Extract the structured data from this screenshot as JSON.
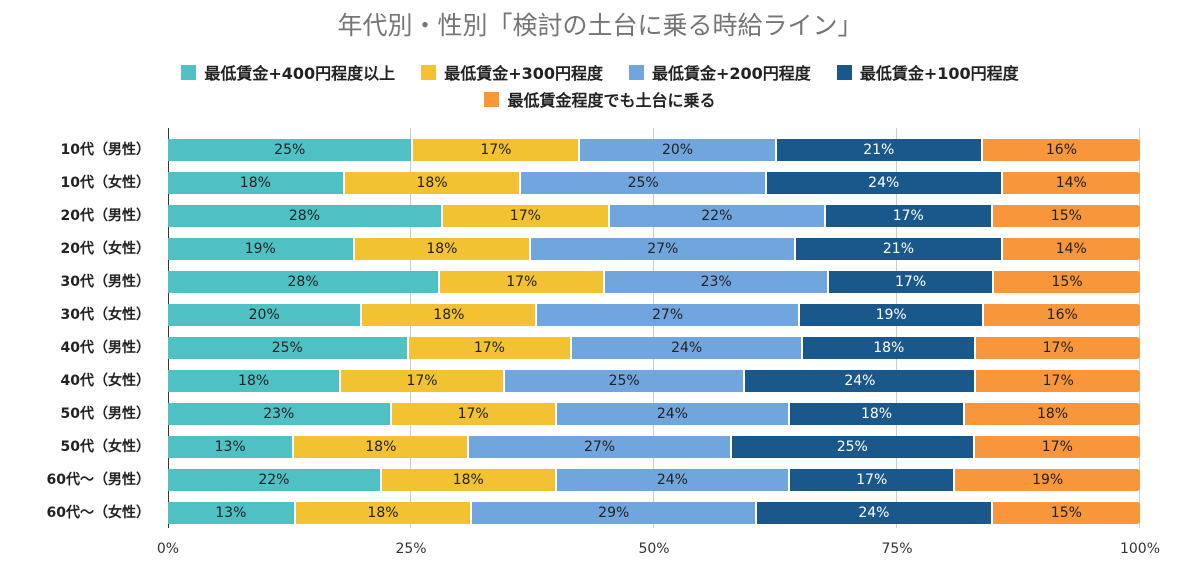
{
  "chart_data": {
    "type": "bar",
    "orientation": "horizontal",
    "stacked": "percent",
    "title": "年代別・性別「検討の土台に乗る時給ライン」",
    "categories": [
      "10代（男性）",
      "10代（女性）",
      "20代（男性）",
      "20代（女性）",
      "30代（男性）",
      "30代（女性）",
      "40代（男性）",
      "40代（女性）",
      "50代（男性）",
      "50代（女性）",
      "60代〜（男性）",
      "60代〜（女性）"
    ],
    "series": [
      {
        "name": "最低賃金+400円程度以上",
        "color": "#4fc1c5",
        "values": [
          25,
          18,
          28,
          19,
          28,
          20,
          25,
          18,
          23,
          13,
          22,
          13
        ]
      },
      {
        "name": "最低賃金+300円程度",
        "color": "#f2c232",
        "values": [
          17,
          18,
          17,
          18,
          17,
          18,
          17,
          17,
          17,
          18,
          18,
          18
        ]
      },
      {
        "name": "最低賃金+200円程度",
        "color": "#71a5dd",
        "values": [
          20,
          25,
          22,
          27,
          23,
          27,
          24,
          25,
          24,
          27,
          24,
          29
        ]
      },
      {
        "name": "最低賃金+100円程度",
        "color": "#1a578a",
        "values": [
          21,
          24,
          17,
          21,
          17,
          19,
          18,
          24,
          18,
          25,
          17,
          24
        ]
      },
      {
        "name": "最低賃金程度でも土台に乗る",
        "color": "#f7963a",
        "values": [
          16,
          14,
          15,
          14,
          15,
          16,
          17,
          17,
          18,
          17,
          19,
          15
        ]
      }
    ],
    "xticks": [
      "0%",
      "25%",
      "50%",
      "75%",
      "100%"
    ],
    "xlim": [
      0,
      100
    ],
    "legend": "top",
    "grid": true
  }
}
